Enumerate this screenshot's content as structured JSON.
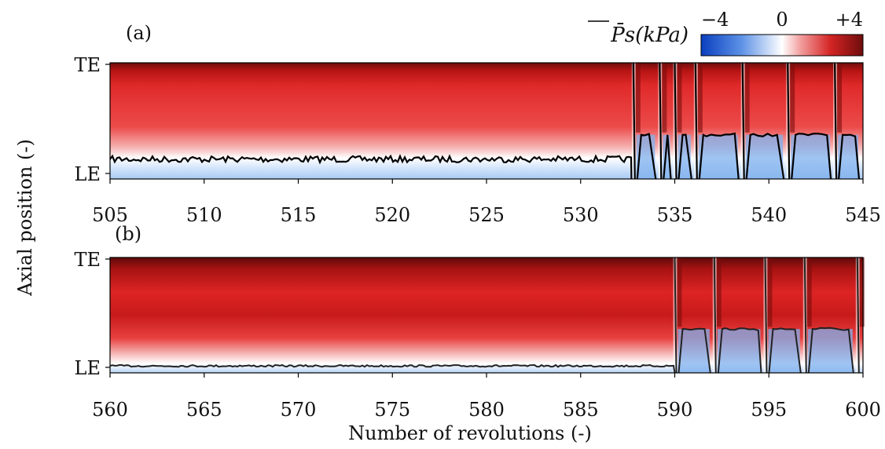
{
  "figure": {
    "ylabel": "Axial position (-)",
    "xlabel": "Number of revolutions (-)",
    "colorbar": {
      "label": "P̄s(kPa)",
      "tick_labels": [
        "−4",
        "0",
        "+4"
      ],
      "range": [
        -4,
        4
      ],
      "colors": {
        "low": "#0a3fbf",
        "mid": "#ffffff",
        "high": "#7a0d0d"
      }
    }
  },
  "chart_data": [
    {
      "type": "heatmap",
      "panel_label": "(a)",
      "x_range": [
        505,
        545
      ],
      "x_ticks": [
        505,
        510,
        515,
        520,
        525,
        530,
        535,
        540,
        545
      ],
      "y_tick_labels": [
        "TE",
        "LE"
      ],
      "z_label": "P̄s (kPa)",
      "z_range": [
        -4,
        4
      ],
      "stall_onset_x": 532.7,
      "zero_contour_baseline_y": 0.17,
      "high_pressure_bands_x": [
        532.8,
        534.2,
        535.0,
        536.1,
        538.6,
        541.0,
        543.5
      ]
    },
    {
      "type": "heatmap",
      "panel_label": "(b)",
      "x_range": [
        560,
        600
      ],
      "x_ticks": [
        560,
        565,
        570,
        575,
        580,
        585,
        590,
        595,
        600
      ],
      "y_tick_labels": [
        "TE",
        "LE"
      ],
      "z_label": "P̄s (kPa)",
      "z_range": [
        -4,
        4
      ],
      "stall_onset_x": 590.0,
      "zero_contour_baseline_y": 0.06,
      "high_pressure_bands_x": [
        590.0,
        592.1,
        594.8,
        596.9,
        599.7
      ]
    }
  ]
}
